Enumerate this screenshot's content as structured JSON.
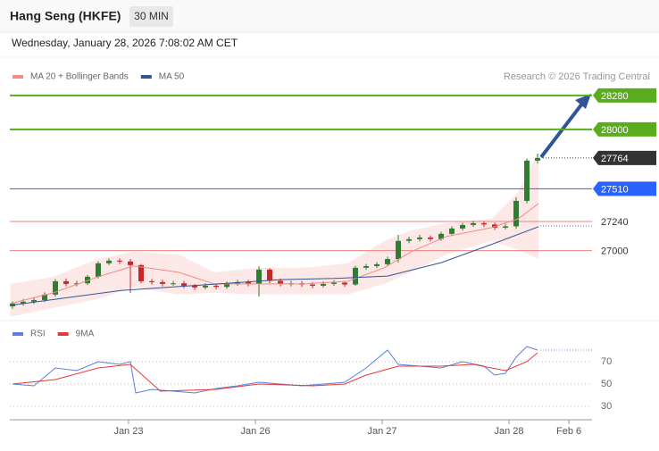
{
  "header": {
    "title": "Hang Seng (HKFE)",
    "timeframe": "30 MIN",
    "datetime": "Wednesday, January 28, 2026 7:08:02 AM CET"
  },
  "watermark": "Research © 2026 Trading Central",
  "chart_data": [
    {
      "type": "candlestick",
      "xlim": [
        -0.25,
        54.08
      ],
      "ylim": [
        26400,
        28360
      ],
      "up_color": "#2e7d32",
      "down_color": "#c62828",
      "candles": {
        "open": [
          26540,
          26563,
          26578,
          26592,
          26637,
          26747,
          26725,
          26730,
          26784,
          26895,
          26917,
          26910,
          26880,
          26747,
          26740,
          26725,
          26730,
          26710,
          26696,
          26710,
          26700,
          26725,
          26740,
          26725,
          26843,
          26750,
          26725,
          26730,
          26720,
          26710,
          26725,
          26735,
          26720,
          26858,
          26872,
          26887,
          26930,
          27080,
          27094,
          27108,
          27095,
          27138,
          27182,
          27211,
          27226,
          27215,
          27189,
          27200,
          27410,
          27742
        ],
        "high": [
          26580,
          26600,
          26610,
          26655,
          26765,
          26770,
          26750,
          26800,
          26910,
          26935,
          26935,
          26930,
          26890,
          26765,
          26760,
          26750,
          26750,
          26725,
          26730,
          26725,
          26745,
          26760,
          26760,
          26870,
          26855,
          26770,
          26750,
          26750,
          26740,
          26745,
          26755,
          26750,
          26875,
          26890,
          26905,
          26950,
          27130,
          27115,
          27130,
          27125,
          27155,
          27200,
          27230,
          27245,
          27240,
          27230,
          27220,
          27440,
          27760,
          27800
        ],
        "low": [
          26520,
          26545,
          26560,
          26575,
          26620,
          26705,
          26705,
          26715,
          26770,
          26880,
          26890,
          26650,
          26730,
          26720,
          26705,
          26710,
          26690,
          26675,
          26680,
          26680,
          26685,
          26710,
          26705,
          26620,
          26730,
          26705,
          26705,
          26700,
          26690,
          26695,
          26710,
          26700,
          26710,
          26840,
          26855,
          26870,
          26900,
          27060,
          27075,
          27075,
          27080,
          27120,
          27165,
          27195,
          27195,
          27170,
          27175,
          27180,
          27390,
          27720
        ],
        "close": [
          26563,
          26578,
          26592,
          26637,
          26747,
          26725,
          26730,
          26784,
          26895,
          26917,
          26910,
          26880,
          26747,
          26740,
          26725,
          26730,
          26710,
          26696,
          26710,
          26700,
          26725,
          26740,
          26725,
          26843,
          26750,
          26725,
          26730,
          26720,
          26710,
          26725,
          26735,
          26720,
          26858,
          26872,
          26887,
          26930,
          27080,
          27094,
          27108,
          27095,
          27138,
          27182,
          27211,
          27226,
          27215,
          27189,
          27200,
          27410,
          27742,
          27764
        ]
      },
      "series": [
        {
          "name": "MA 20 + Bollinger Bands",
          "color": "#f28b82",
          "band_color": "#fde2e2",
          "x": [
            -0.2,
            3.8,
            8,
            11.3,
            15.5,
            18.8,
            23,
            27.2,
            31.3,
            34.7,
            37.2,
            40.5,
            44.7,
            47.2,
            49.1
          ],
          "values": [
            26563,
            26651,
            26784,
            26873,
            26821,
            26725,
            26725,
            26725,
            26747,
            26858,
            26990,
            27116,
            27189,
            27263,
            27388
          ],
          "upper": [
            26725,
            26784,
            26932,
            26990,
            26968,
            26821,
            26858,
            26858,
            26895,
            27079,
            27167,
            27226,
            27263,
            27484,
            27816
          ],
          "lower": [
            26453,
            26526,
            26600,
            26696,
            26637,
            26651,
            26637,
            26637,
            26637,
            26725,
            26821,
            26968,
            27079,
            27006,
            26932
          ]
        },
        {
          "name": "MA 50",
          "color": "#2f5597",
          "x": [
            -0.2,
            5,
            10,
            15,
            20,
            25,
            30,
            35,
            40,
            45,
            49.1
          ],
          "values": [
            26548,
            26610,
            26670,
            26700,
            26730,
            26760,
            26770,
            26790,
            26900,
            27060,
            27197
          ]
        }
      ],
      "levels": [
        {
          "value": 28280,
          "color": "#5aab1e",
          "style": "box",
          "line": "solid"
        },
        {
          "value": 28000,
          "color": "#5aab1e",
          "style": "box",
          "line": "solid"
        },
        {
          "value": 27764,
          "color": "#333333",
          "style": "box",
          "line": "dotted"
        },
        {
          "value": 27510,
          "color": "#2962ff",
          "style": "box",
          "line": "solid"
        },
        {
          "value": 27240,
          "color": "#f08080",
          "style": "text",
          "line": "solid"
        },
        {
          "value": 27000,
          "color": "#f08080",
          "style": "text",
          "line": "solid"
        }
      ]
    },
    {
      "type": "line",
      "xlim": [
        -0.25,
        54.08
      ],
      "ylim": [
        22,
        86
      ],
      "yticks": [
        70,
        50,
        30
      ],
      "grid": true,
      "xticks": [
        {
          "value": 10.83,
          "label": "Jan 23"
        },
        {
          "value": 22.67,
          "label": "Jan 26"
        },
        {
          "value": 34.5,
          "label": "Jan 27"
        },
        {
          "value": 46.33,
          "label": "Jan 28"
        },
        {
          "value": 51.92,
          "label": "Feb 6"
        }
      ],
      "series": [
        {
          "name": "RSI",
          "color": "#5b7fde",
          "x": [
            0,
            2,
            4,
            6,
            8,
            10,
            11,
            11.5,
            13,
            15,
            17,
            19,
            21,
            23,
            25,
            27,
            29,
            31,
            33,
            35,
            36,
            38,
            40,
            42,
            44,
            45,
            46,
            47,
            48,
            49
          ],
          "values": [
            50,
            48.4,
            64.4,
            62,
            70,
            67.6,
            70,
            42,
            45.2,
            43.6,
            42,
            46,
            48.4,
            51.6,
            50,
            48.4,
            50,
            51.6,
            64.4,
            80.4,
            67.6,
            66,
            64.4,
            70,
            66,
            58,
            59.6,
            74,
            83.6,
            80.4
          ]
        },
        {
          "name": "9MA",
          "color": "#e53935",
          "x": [
            0,
            4,
            8,
            11,
            13.8,
            19,
            23,
            28,
            31,
            33,
            36,
            40,
            43,
            46,
            48,
            49
          ],
          "values": [
            50,
            54,
            64.4,
            67.6,
            43.6,
            45.2,
            50,
            48.4,
            50,
            58,
            66,
            66,
            67.6,
            62,
            70,
            78
          ]
        }
      ]
    }
  ]
}
